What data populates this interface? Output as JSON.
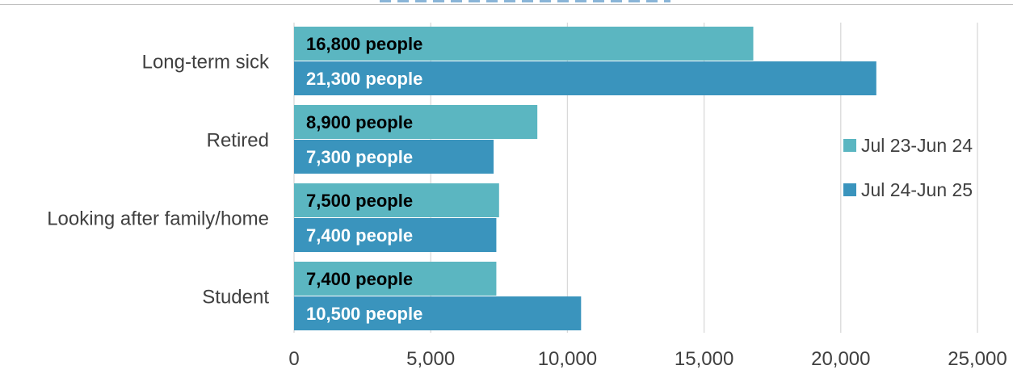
{
  "chart_data": {
    "type": "bar",
    "orientation": "horizontal",
    "categories": [
      "Long-term sick",
      "Retired",
      "Looking after family/home",
      "Student"
    ],
    "series": [
      {
        "name": "Jul 23-Jun 24",
        "color": "#5bb6c1",
        "values": [
          16800,
          8900,
          7500,
          7400
        ],
        "labels": [
          "16,800 people",
          "8,900 people",
          "7,500 people",
          "7,400 people"
        ],
        "label_color": "#000000"
      },
      {
        "name": "Jul 24-Jun 25",
        "color": "#3a94bd",
        "values": [
          21300,
          7300,
          7400,
          10500
        ],
        "labels": [
          "21,300 people",
          "7,300 people",
          "7,400 people",
          "10,500 people"
        ],
        "label_color": "#ffffff"
      }
    ],
    "xlim": [
      0,
      25000
    ],
    "xticks": [
      0,
      5000,
      10000,
      15000,
      20000,
      25000
    ],
    "xtick_labels": [
      "0",
      "5,000",
      "10,000",
      "15,000",
      "20,000",
      "25,000"
    ],
    "grid": "vertical",
    "legend_position": "right"
  }
}
